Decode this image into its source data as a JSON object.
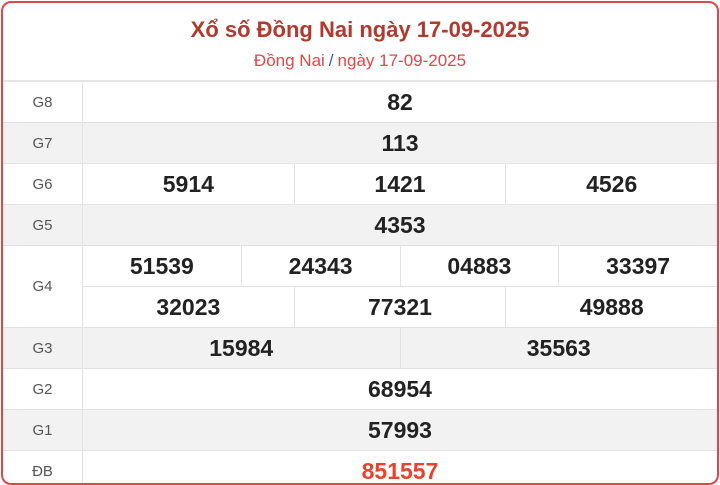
{
  "header": {
    "title": "Xổ số Đồng Nai ngày 17-09-2025",
    "breadcrumb_province": "Đồng Nai",
    "breadcrumb_sep": "/",
    "breadcrumb_date": "ngày 17-09-2025"
  },
  "colors": {
    "title": "#b03a2e",
    "accent": "#e0474a",
    "special": "#e8432e"
  },
  "prizes": [
    {
      "label": "G8",
      "lines": [
        [
          "82"
        ]
      ]
    },
    {
      "label": "G7",
      "lines": [
        [
          "113"
        ]
      ]
    },
    {
      "label": "G6",
      "lines": [
        [
          "5914",
          "1421",
          "4526"
        ]
      ]
    },
    {
      "label": "G5",
      "lines": [
        [
          "4353"
        ]
      ]
    },
    {
      "label": "G4",
      "lines": [
        [
          "51539",
          "24343",
          "04883",
          "33397"
        ],
        [
          "32023",
          "77321",
          "49888"
        ]
      ]
    },
    {
      "label": "G3",
      "lines": [
        [
          "15984",
          "35563"
        ]
      ]
    },
    {
      "label": "G2",
      "lines": [
        [
          "68954"
        ]
      ]
    },
    {
      "label": "G1",
      "lines": [
        [
          "57993"
        ]
      ]
    },
    {
      "label": "ĐB",
      "lines": [
        [
          "851557"
        ]
      ]
    }
  ]
}
